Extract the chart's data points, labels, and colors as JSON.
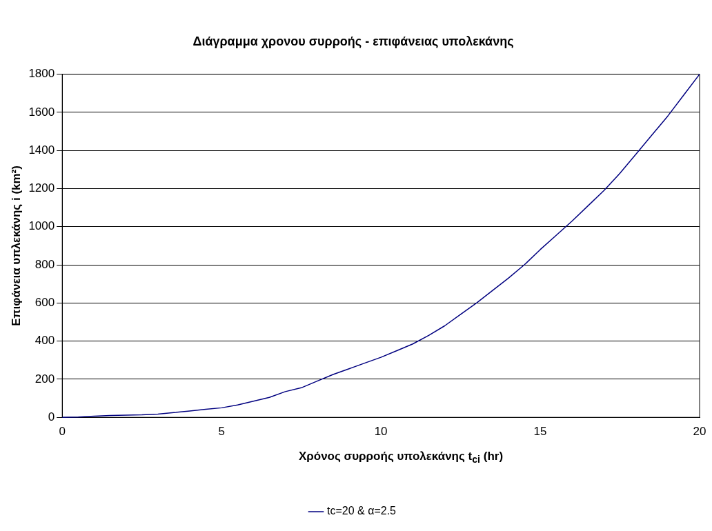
{
  "chart_data": {
    "type": "line",
    "title": "Διάγραμμα χρονου συρροής - επιφάνειας υπολεκάνης",
    "xlabel": "Χρόνος συρροής υπολεκάνης t$_{ci}$ (hr)",
    "ylabel": "Επιφάνεια υπλεκάνης i (km²)",
    "x": [
      0,
      0.5,
      1,
      1.5,
      2,
      2.5,
      3,
      3.5,
      4,
      4.5,
      5,
      5.5,
      6,
      6.5,
      7,
      7.5,
      8,
      8.5,
      9,
      9.5,
      10,
      10.5,
      11,
      11.5,
      12,
      12.5,
      13,
      13.5,
      14,
      14.5,
      15,
      15.5,
      16,
      16.5,
      17,
      17.5,
      18,
      18.5,
      19,
      19.5,
      20
    ],
    "series": [
      {
        "name": "tc=20 & α=2.5",
        "color": "#000080",
        "values": [
          0,
          2,
          6,
          10,
          12,
          13,
          17,
          25,
          33,
          42,
          50,
          65,
          85,
          105,
          135,
          155,
          190,
          225,
          255,
          285,
          315,
          350,
          385,
          430,
          480,
          540,
          600,
          665,
          730,
          800,
          880,
          955,
          1030,
          1110,
          1190,
          1280,
          1380,
          1480,
          1580,
          1690,
          1800
        ]
      }
    ],
    "xlim": [
      0,
      20
    ],
    "xticks": [
      0,
      5,
      10,
      15,
      20
    ],
    "ylim": [
      0,
      1800
    ],
    "yticks": [
      0,
      200,
      400,
      600,
      800,
      1000,
      1200,
      1400,
      1600,
      1800
    ],
    "grid": "y",
    "legend": "bottom",
    "marker": "none",
    "line_style": "solid"
  }
}
